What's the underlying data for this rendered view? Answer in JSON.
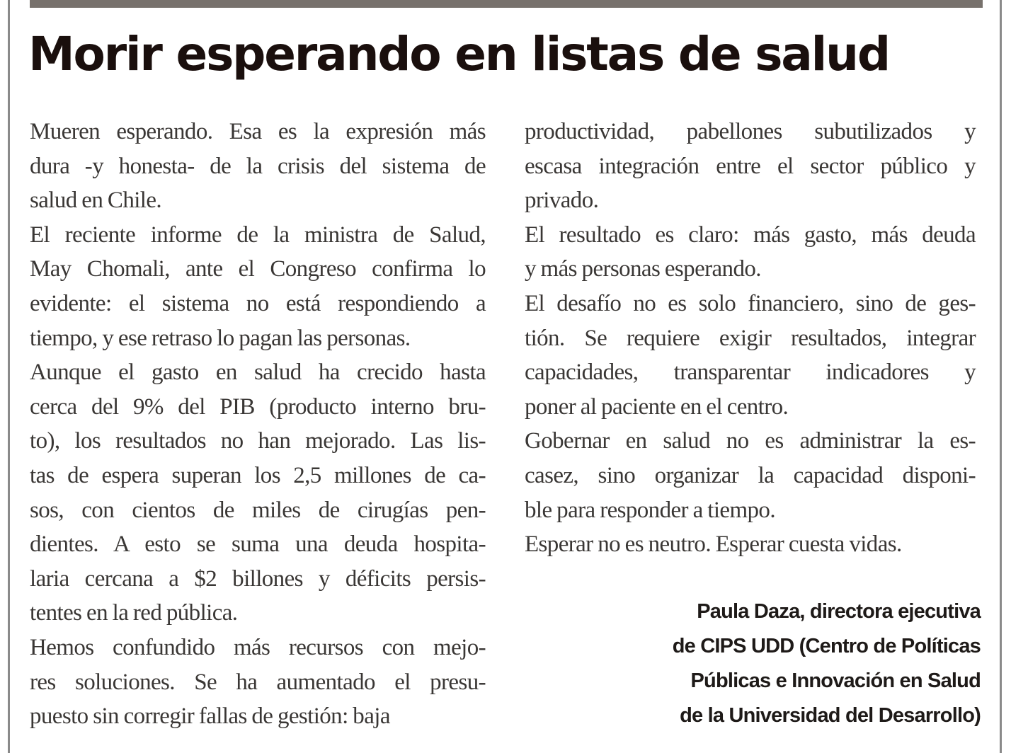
{
  "article": {
    "title": "Morir esperando en listas de salud",
    "left_column": [
      [
        "Mueren esperando. Esa es la expresión más",
        "dura -y honesta- de la crisis del sistema de",
        "salud en Chile."
      ],
      [
        "El reciente informe de la ministra de Salud,",
        "May Chomali, ante el Congreso confirma lo",
        "evidente: el sistema no está respondiendo a",
        "tiempo, y ese retraso lo pagan las personas."
      ],
      [
        "Aunque el gasto en salud ha crecido hasta",
        "cerca del 9% del PIB (producto interno bru-",
        "to), los resultados no han mejorado. Las lis-",
        "tas de espera superan los 2,5 millones de ca-",
        "sos, con cientos de miles de cirugías pen-",
        "dientes. A esto se suma una deuda hospita-",
        "laria cercana a $2 billones y déficits persis-",
        "tentes en la red pública."
      ],
      [
        "Hemos confundido más recursos con mejo-",
        "res soluciones. Se ha aumentado el presu-",
        "puesto sin corregir fallas de gestión: baja"
      ]
    ],
    "right_column": [
      [
        "productividad, pabellones subutilizados y",
        "escasa integración entre el sector público y",
        "privado."
      ],
      [
        "El resultado es claro: más gasto, más deuda",
        "y más personas esperando."
      ],
      [
        "El desafío no es solo financiero, sino de ges-",
        "tión. Se requiere exigir resultados, integrar",
        "capacidades, transparentar indicadores y",
        "poner al paciente en el centro."
      ],
      [
        "Gobernar en salud no es administrar la es-",
        "casez, sino organizar la capacidad disponi-",
        "ble para responder a tiempo."
      ],
      [
        "Esperar no es neutro. Esperar cuesta vidas."
      ]
    ],
    "signature": [
      "Paula Daza, directora ejecutiva",
      "de CIPS UDD (Centro de Políticas",
      "Públicas e Innovación en Salud",
      "de la Universidad del Desarrollo)"
    ]
  }
}
